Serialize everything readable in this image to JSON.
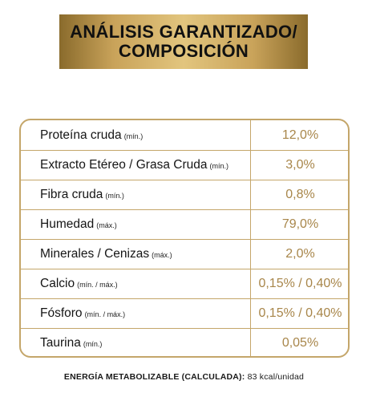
{
  "header": {
    "title_line1": "ANÁLISIS GARANTIZADO/",
    "title_line2": "COMPOSICIÓN"
  },
  "nutrition_table": {
    "rows": [
      {
        "label": "Proteína cruda",
        "qualifier": "(mín.)",
        "value": "12,0%"
      },
      {
        "label": "Extracto Etéreo / Grasa Cruda",
        "qualifier": "(mín.)",
        "value": "3,0%"
      },
      {
        "label": "Fibra cruda",
        "qualifier": "(mín.)",
        "value": "0,8%"
      },
      {
        "label": "Humedad",
        "qualifier": "(máx.)",
        "value": "79,0%"
      },
      {
        "label": "Minerales / Cenizas",
        "qualifier": "(máx.)",
        "value": "2,0%"
      },
      {
        "label": "Calcio",
        "qualifier": "(mín. / máx.)",
        "value": "0,15% / 0,40%"
      },
      {
        "label": "Fósforo",
        "qualifier": "(mín. / máx.)",
        "value": "0,15% / 0,40%"
      },
      {
        "label": "Taurina",
        "qualifier": "(mín.)",
        "value": "0,05%"
      }
    ]
  },
  "footer": {
    "energy_label": "ENERGÍA METABOLIZABLE (CALCULADA):",
    "energy_value": "83 kcal/unidad"
  },
  "colors": {
    "gold_border": "#c4a66a",
    "gold_text": "#a8864a",
    "banner_gold": "#c9a35a"
  }
}
